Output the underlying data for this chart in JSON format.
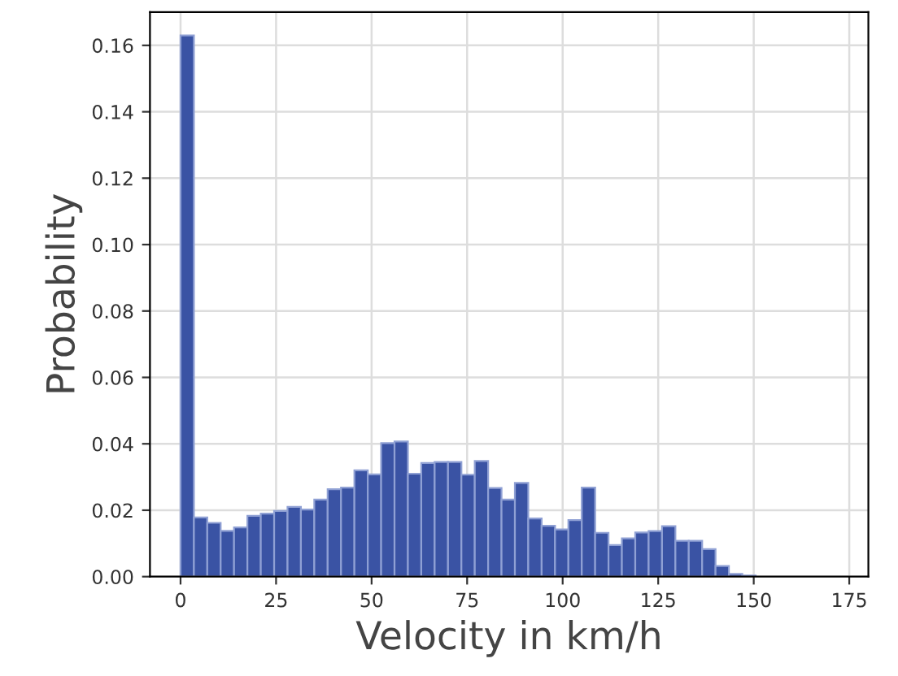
{
  "chart_data": {
    "type": "histogram",
    "xlabel": "Velocity in km/h",
    "ylabel": "Probability",
    "color": "#3a53a4",
    "bins": [
      0,
      3.5,
      7,
      10.5,
      14,
      17.5,
      21,
      24.5,
      28,
      31.5,
      35,
      38.5,
      42,
      45.5,
      49,
      52.5,
      56,
      59.5,
      63,
      66.5,
      70,
      73.5,
      77,
      80.5,
      84,
      87.5,
      91,
      94.5,
      98,
      101.5,
      105,
      108.5,
      112,
      115.5,
      119,
      122.5,
      126,
      129.5,
      133,
      136.5,
      140,
      143.5,
      147,
      150.5,
      154,
      157.5
    ],
    "values": [
      0.163,
      0.0178,
      0.0162,
      0.0138,
      0.0148,
      0.0183,
      0.019,
      0.0198,
      0.021,
      0.0202,
      0.0232,
      0.0263,
      0.0268,
      0.032,
      0.0308,
      0.0402,
      0.0407,
      0.031,
      0.0342,
      0.0345,
      0.0345,
      0.0307,
      0.0348,
      0.0267,
      0.0232,
      0.0282,
      0.0175,
      0.0153,
      0.0142,
      0.017,
      0.0268,
      0.0132,
      0.0095,
      0.0115,
      0.0133,
      0.0137,
      0.0152,
      0.0108,
      0.0108,
      0.0083,
      0.0032,
      0.0008,
      0.0003,
      null,
      null
    ],
    "xlim": [
      -8,
      180
    ],
    "ylim": [
      0,
      0.17
    ],
    "xticks": [
      0,
      25,
      50,
      75,
      100,
      125,
      150,
      175
    ],
    "yticks": [
      {
        "value": 0,
        "label": "0.00"
      },
      {
        "value": 0.02,
        "label": "0.02"
      },
      {
        "value": 0.04,
        "label": "0.04"
      },
      {
        "value": 0.06,
        "label": "0.06"
      },
      {
        "value": 0.08,
        "label": "0.08"
      },
      {
        "value": 0.1,
        "label": "0.10"
      },
      {
        "value": 0.12,
        "label": "0.12"
      },
      {
        "value": 0.14,
        "label": "0.14"
      },
      {
        "value": 0.16,
        "label": "0.16"
      }
    ],
    "grid": true
  }
}
